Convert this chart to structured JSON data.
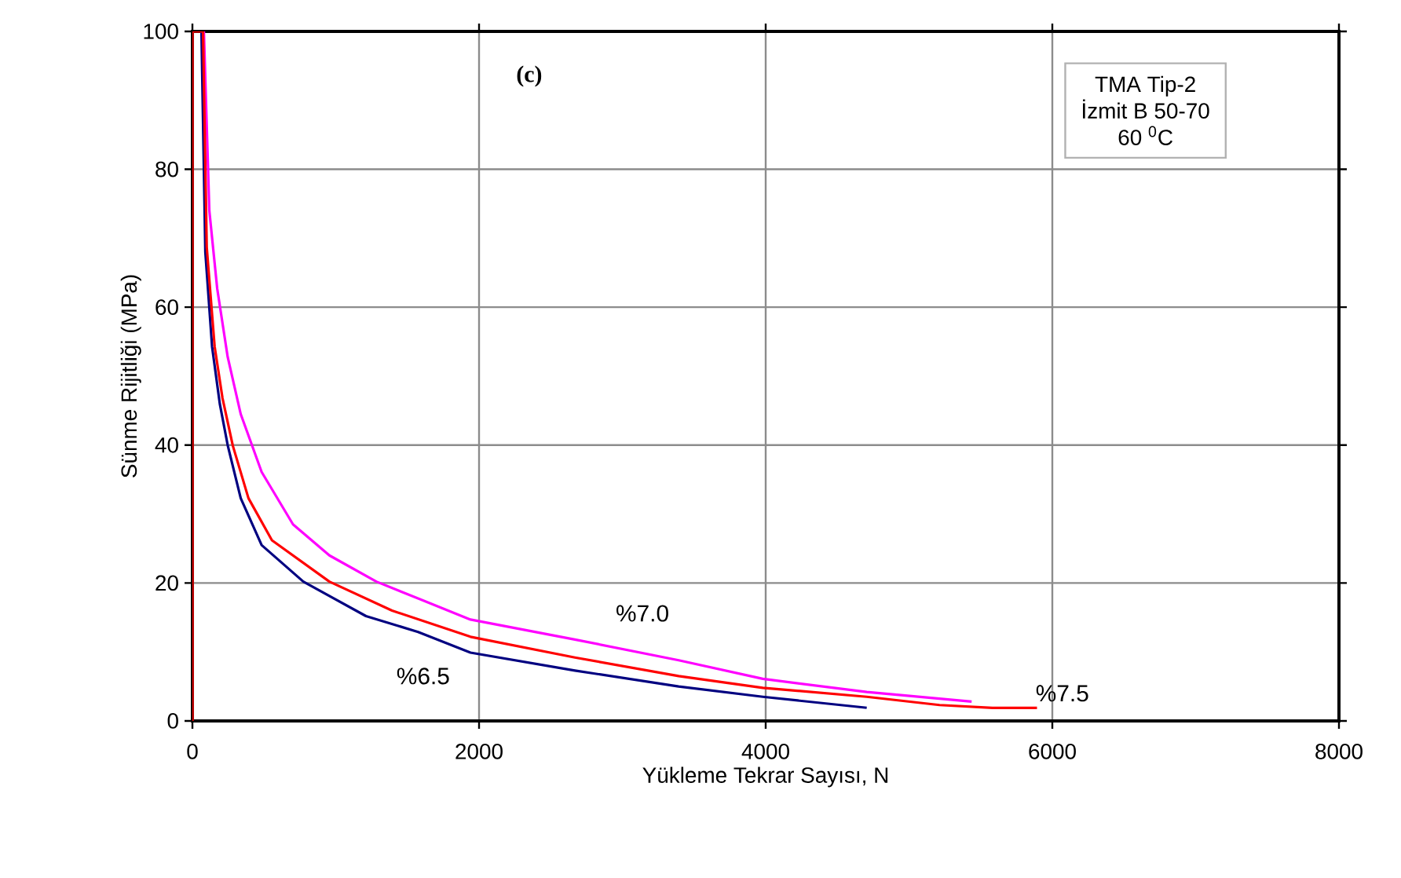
{
  "chart_data": {
    "type": "line",
    "xlabel": "Yükleme Tekrar Sayısı, N",
    "ylabel": "Sünme Rijitliği (MPa)",
    "annotations": [
      "(c)",
      "TMA Tip-2",
      "İzmit B 50-70",
      "60 $^{0}$C"
    ],
    "xlim": [
      0,
      8000
    ],
    "ylim": [
      0,
      100
    ],
    "xticks": [
      0,
      2000,
      4000,
      6000,
      8000
    ],
    "yticks": [
      0,
      20,
      40,
      60,
      80,
      100
    ],
    "grid": true,
    "series": [
      {
        "name": "%6.5",
        "color": "#000080",
        "x": [
          63,
          90,
          137,
          191,
          246,
          337,
          483,
          774,
          1211,
          1575,
          1940,
          2669,
          3393,
          3980,
          4705
        ],
        "values": [
          100,
          68,
          54.3,
          46,
          40,
          32.3,
          25.5,
          20.2,
          15.2,
          12.9,
          9.9,
          7.3,
          5.0,
          3.5,
          1.9
        ]
      },
      {
        "name": "%7.0",
        "color": "#ff00ff",
        "x": [
          80,
          118,
          173,
          246,
          337,
          483,
          702,
          956,
          1284,
          1940,
          2669,
          3393,
          3980,
          4705,
          5437
        ],
        "values": [
          100,
          74,
          62.7,
          52.8,
          44.5,
          36.1,
          28.5,
          24,
          20.2,
          14.7,
          11.8,
          8.8,
          6.1,
          4.2,
          2.8
        ]
      },
      {
        "name": "%7.5",
        "color": "#ff0000",
        "x": [
          0,
          0,
          74,
          100,
          155,
          210,
          282,
          391,
          555,
          956,
          1393,
          1940,
          2669,
          3393,
          3980,
          4705,
          5213,
          5582,
          5893
        ],
        "values": [
          0,
          100,
          100,
          68.7,
          54.3,
          46.8,
          39.9,
          32.3,
          26.2,
          20.2,
          16.0,
          12.2,
          9.2,
          6.5,
          4.8,
          3.5,
          2.3,
          1.9,
          1.9
        ]
      }
    ]
  }
}
